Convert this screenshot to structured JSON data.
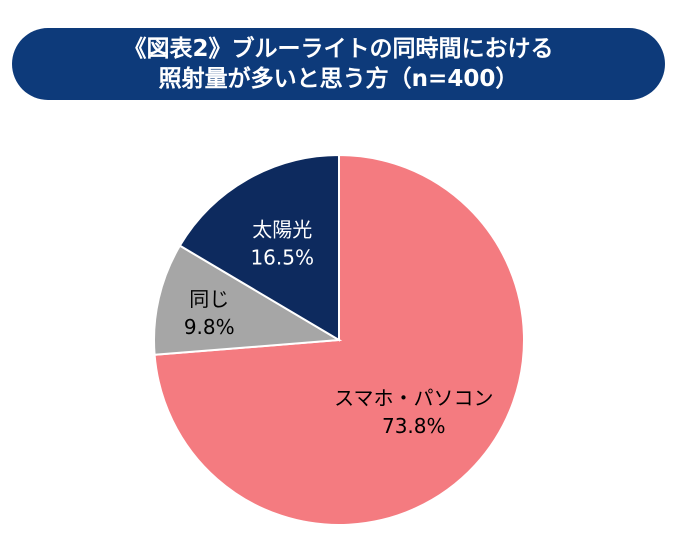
{
  "chart_data": {
    "type": "pie",
    "title_lines": [
      "《図表2》ブルーライトの同時間における",
      "照射量が多いと思う方（n=400）"
    ],
    "slices": [
      {
        "label": "スマホ・パソコン",
        "value": 73.8,
        "value_label": "73.8%",
        "color": "#f47b80",
        "text_color": "#000000"
      },
      {
        "label": "同じ",
        "value": 9.8,
        "value_label": "9.8%",
        "color": "#a6a6a6",
        "text_color": "#000000"
      },
      {
        "label": "太陽光",
        "value": 16.5,
        "value_label": "16.5%",
        "color": "#0d2a5e",
        "text_color": "#ffffff"
      }
    ],
    "start_angle_deg": 0,
    "direction": "clockwise"
  }
}
